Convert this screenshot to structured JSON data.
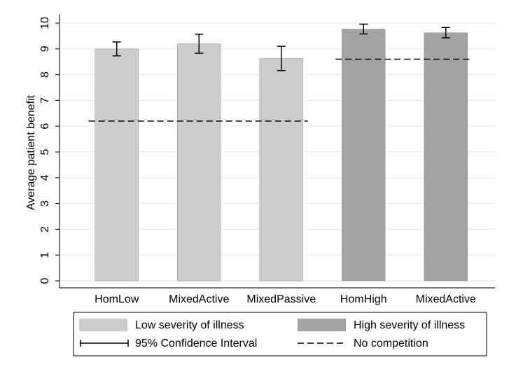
{
  "chart_data": {
    "type": "bar",
    "y_label": "Average patient benefit",
    "categories": [
      "HomLow",
      "MixedActive",
      "MixedPassive",
      "HomHigh",
      "MixedActive"
    ],
    "series": [
      {
        "name": "Low severity of illness",
        "color": "#cccccc",
        "values": [
          9.0,
          9.2,
          8.63,
          null,
          null
        ],
        "errors": [
          0.27,
          0.37,
          0.47,
          null,
          null
        ]
      },
      {
        "name": "High severity of illness",
        "color": "#a3a3a3",
        "values": [
          null,
          null,
          null,
          9.77,
          9.63
        ],
        "errors": [
          null,
          null,
          null,
          0.19,
          0.2
        ]
      }
    ],
    "error_label": "95% Confidence Interval",
    "reference": {
      "name": "No competition",
      "values": [
        6.2,
        6.2,
        6.2,
        8.6,
        8.6
      ]
    },
    "ylim": [
      0,
      10
    ],
    "yticks": [
      0,
      1,
      2,
      3,
      4,
      5,
      6,
      7,
      8,
      9,
      10
    ],
    "grid": true
  }
}
